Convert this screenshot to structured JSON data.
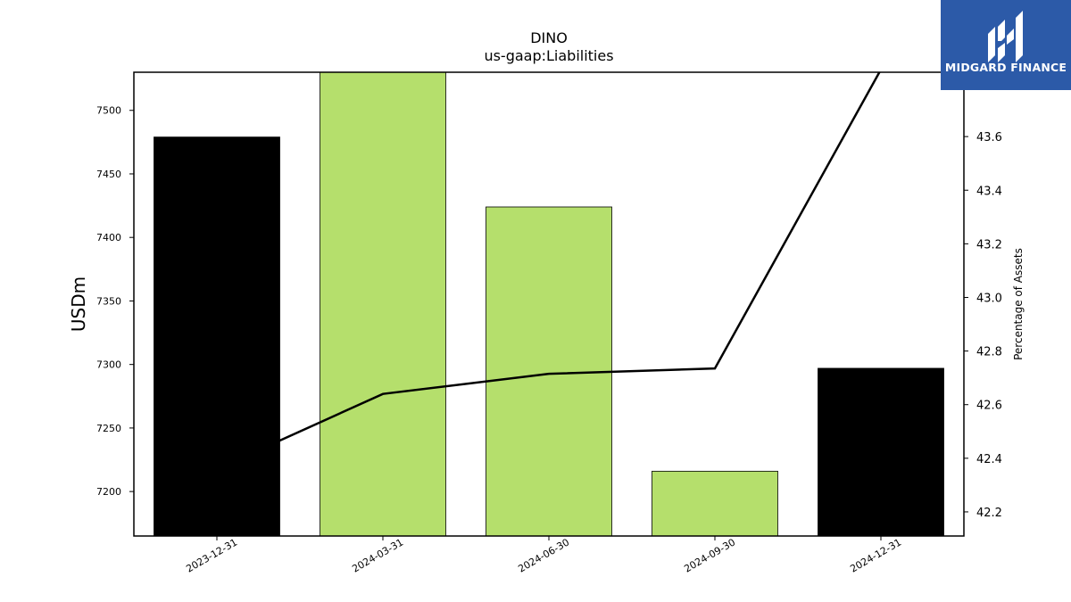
{
  "chart_data": {
    "type": "bar+line",
    "title": "DINO",
    "subtitle": "us-gaap:Liabilities",
    "categories": [
      "2023-12-31",
      "2024-03-31",
      "2024-06-30",
      "2024-09-30",
      "2024-12-31"
    ],
    "bar_series": {
      "values": [
        7479,
        7530,
        7424,
        7216,
        7297
      ],
      "colors": [
        "#000000",
        "#b5df6c",
        "#b5df6c",
        "#b5df6c",
        "#000000"
      ]
    },
    "line_series": {
      "values": [
        42.36,
        42.64,
        42.715,
        42.735,
        43.85
      ],
      "color": "#000000"
    },
    "y_left": {
      "label": "USDm",
      "lim": [
        7165,
        7530
      ],
      "ticks": [
        7200,
        7250,
        7300,
        7350,
        7400,
        7450,
        7500
      ]
    },
    "y_right": {
      "label": "Percentage of Assets",
      "lim": [
        42.11,
        43.84
      ],
      "ticks": [
        42.2,
        42.4,
        42.6,
        42.8,
        43.0,
        43.2,
        43.4,
        43.6
      ],
      "tick_labels": [
        "42.2",
        "42.4",
        "42.6",
        "42.8",
        "43.0",
        "43.2",
        "43.4",
        "43.6"
      ]
    }
  },
  "logo": {
    "text": "MIDGARD FINANCE",
    "background": "#2c5aa8"
  }
}
